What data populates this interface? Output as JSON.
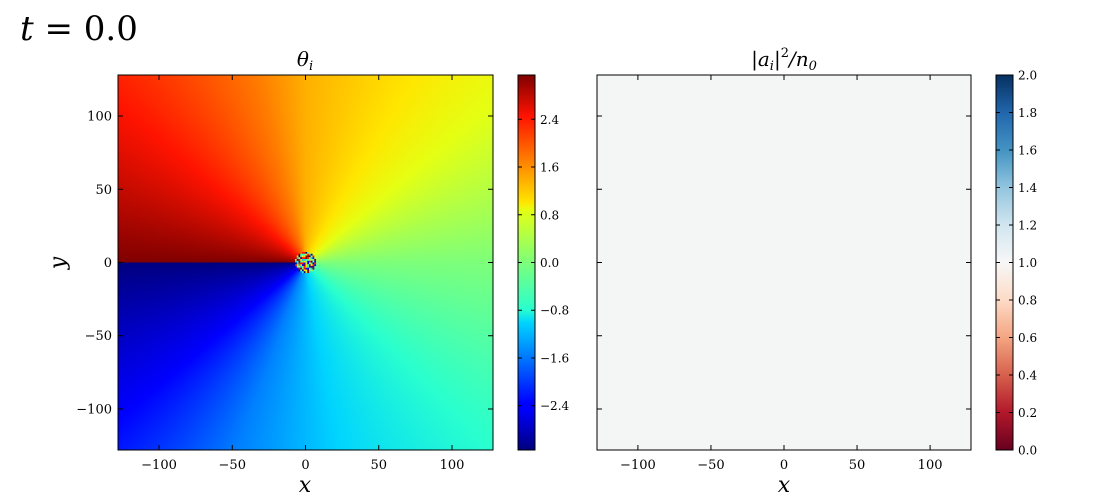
{
  "figure_title": {
    "var": "t",
    "op": " = ",
    "value": "0.0"
  },
  "chart_data": [
    {
      "type": "heatmap",
      "title": {
        "main": "θ",
        "sub": "i"
      },
      "xlabel": "x",
      "ylabel": "y",
      "xlim": [
        -128,
        128
      ],
      "ylim": [
        -128,
        128
      ],
      "xticks": [
        -100,
        -50,
        0,
        50,
        100
      ],
      "yticks": [
        100,
        50,
        0,
        -50,
        -100
      ],
      "xtick_labels": [
        "−100",
        "−50",
        "0",
        "50",
        "100"
      ],
      "ytick_labels": [
        "100",
        "50",
        "0",
        "−50",
        "−100"
      ],
      "field": "phase angle atan2(y, x) with a vortex core at the origin",
      "colormap": "jet",
      "colorbar": {
        "range": [
          -3.14159,
          3.14159
        ],
        "ticks": [
          2.4,
          1.6,
          0.8,
          0.0,
          -0.8,
          -1.6,
          -2.4
        ],
        "tick_labels": [
          "2.4",
          "1.6",
          "0.8",
          "0.0",
          "−0.8",
          "−1.6",
          "−2.4"
        ]
      }
    },
    {
      "type": "heatmap",
      "title": {
        "text": "|a",
        "sub": "i",
        "mid": "|",
        "sup": "2",
        "tail": "/n",
        "sub2": "0"
      },
      "xlabel": "x",
      "ylabel": "",
      "xlim": [
        -128,
        128
      ],
      "ylim": [
        -128,
        128
      ],
      "xticks": [
        -100,
        -50,
        0,
        50,
        100
      ],
      "xtick_labels": [
        "−100",
        "−50",
        "0",
        "50",
        "100"
      ],
      "yticks": [
        100,
        50,
        0,
        -50,
        -100
      ],
      "field": "uniform density equal to 1.0",
      "value": 1.0,
      "fill_color": "#f4f6f5",
      "colormap": "RdBu",
      "colorbar": {
        "range": [
          0.0,
          2.0
        ],
        "ticks": [
          2.0,
          1.8,
          1.6,
          1.4,
          1.2,
          1.0,
          0.8,
          0.6,
          0.4,
          0.2,
          0.0
        ],
        "tick_labels": [
          "2.0",
          "1.8",
          "1.6",
          "1.4",
          "1.2",
          "1.0",
          "0.8",
          "0.6",
          "0.4",
          "0.2",
          "0.0"
        ]
      }
    }
  ]
}
